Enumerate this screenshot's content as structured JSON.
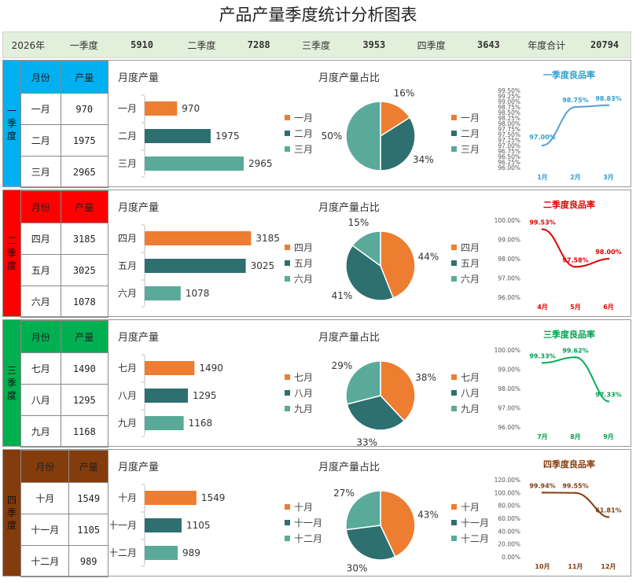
{
  "title": "产品产量季度统计分析图表",
  "summary": {
    "year": "2026年",
    "q1_label": "一季度",
    "q1_value": "5910",
    "q2_label": "二季度",
    "q2_value": "7288",
    "q3_label": "三季度",
    "q3_value": "3953",
    "q4_label": "四季度",
    "q4_value": "3643",
    "total_label": "年度合计",
    "total_value": "20794"
  },
  "table_headers": {
    "month": "月份",
    "output": "产量"
  },
  "quarters": [
    {
      "tag": [
        "一",
        "季",
        "度"
      ],
      "color": "#00b0f0",
      "header_color": "#00b0f0",
      "months": [
        "一月",
        "二月",
        "三月"
      ],
      "values": [
        "970",
        "1975",
        "2965"
      ]
    },
    {
      "tag": [
        "二",
        "季",
        "度"
      ],
      "color": "#ff0000",
      "header_color": "#ff0000",
      "months": [
        "四月",
        "五月",
        "六月"
      ],
      "values": [
        "3185",
        "3025",
        "1078"
      ]
    },
    {
      "tag": [
        "三",
        "季",
        "度"
      ],
      "color": "#00b050",
      "header_color": "#00b050",
      "months": [
        "七月",
        "八月",
        "九月"
      ],
      "values": [
        "1490",
        "1295",
        "1168"
      ]
    },
    {
      "tag": [
        "四",
        "季",
        "度"
      ],
      "color": "#843c0c",
      "header_color": "#843c0c",
      "months": [
        "十月",
        "十一月",
        "十二月"
      ],
      "values": [
        "1549",
        "1105",
        "989"
      ]
    }
  ],
  "colors": {
    "series": [
      "#ed7d31",
      "#2e6f70",
      "#5aaa9a"
    ],
    "axis": "#bfbfbf"
  },
  "chart_data": [
    {
      "type": "bar",
      "title": "月度产量",
      "categories": [
        "一月",
        "二月",
        "三月"
      ],
      "values": [
        970,
        1975,
        2965
      ]
    },
    {
      "type": "pie",
      "title": "月度产量占比",
      "categories": [
        "一月",
        "二月",
        "三月"
      ],
      "values": [
        16,
        34,
        50
      ],
      "labels": [
        "16%",
        "34%",
        "50%"
      ],
      "legend": [
        "一月",
        "二月",
        "三月"
      ]
    },
    {
      "type": "line",
      "title": "一季度良品率",
      "title_color": "#2e9fd0",
      "line_color": "#5a9fd4",
      "x": [
        "1月",
        "2月",
        "3月"
      ],
      "y": [
        97.0,
        98.75,
        98.83
      ],
      "labels": [
        "97.00%",
        "98.75%",
        "98.83%"
      ],
      "ylim": [
        96.0,
        99.5
      ],
      "yticks": [
        "99.50%",
        "99.25%",
        "99.00%",
        "98.75%",
        "98.50%",
        "98.25%",
        "98.00%",
        "97.75%",
        "97.50%",
        "97.25%",
        "97.00%",
        "96.75%",
        "96.50%",
        "96.25%",
        "96.00%"
      ]
    },
    {
      "type": "bar",
      "title": "月度产量",
      "categories": [
        "四月",
        "五月",
        "六月"
      ],
      "values": [
        3185,
        3025,
        1078
      ]
    },
    {
      "type": "pie",
      "title": "月度产量占比",
      "categories": [
        "四月",
        "五月",
        "六月"
      ],
      "values": [
        44,
        41,
        15
      ],
      "labels": [
        "44%",
        "41%",
        "15%"
      ],
      "legend": [
        "四月",
        "五月",
        "六月"
      ]
    },
    {
      "type": "line",
      "title": "二季度良品率",
      "title_color": "#e00000",
      "line_color": "#e00000",
      "x": [
        "4月",
        "5月",
        "6月"
      ],
      "y": [
        99.53,
        97.58,
        98.0
      ],
      "labels": [
        "99.53%",
        "97.58%",
        "98.00%"
      ],
      "ylim": [
        96.0,
        100.0
      ],
      "yticks": [
        "100.00%",
        "99.00%",
        "98.00%",
        "97.00%",
        "96.00%"
      ]
    },
    {
      "type": "bar",
      "title": "月度产量",
      "categories": [
        "七月",
        "八月",
        "九月"
      ],
      "values": [
        1490,
        1295,
        1168
      ]
    },
    {
      "type": "pie",
      "title": "月度产量占比",
      "categories": [
        "七月",
        "八月",
        "九月"
      ],
      "values": [
        38,
        33,
        29
      ],
      "labels": [
        "38%",
        "33%",
        "29%"
      ],
      "legend": [
        "七月",
        "八月",
        "九月"
      ]
    },
    {
      "type": "line",
      "title": "三季度良品率",
      "title_color": "#00a050",
      "line_color": "#00b050",
      "x": [
        "7月",
        "8月",
        "9月"
      ],
      "y": [
        99.33,
        99.62,
        97.33
      ],
      "labels": [
        "99.33%",
        "99.62%",
        "97.33%"
      ],
      "ylim": [
        96.0,
        100.0
      ],
      "yticks": [
        "100.00%",
        "99.00%",
        "98.00%",
        "97.00%",
        "96.00%"
      ]
    },
    {
      "type": "bar",
      "title": "月度产量",
      "categories": [
        "十月",
        "十一月",
        "十二月"
      ],
      "values": [
        1549,
        1105,
        989
      ]
    },
    {
      "type": "pie",
      "title": "月度产量占比",
      "categories": [
        "十月",
        "十一月",
        "十二月"
      ],
      "values": [
        43,
        30,
        27
      ],
      "labels": [
        "43%",
        "30%",
        "27%"
      ],
      "legend": [
        "十月",
        "十一月",
        "十二月"
      ]
    },
    {
      "type": "line",
      "title": "四季度良品率",
      "title_color": "#843c0c",
      "line_color": "#843c0c",
      "x": [
        "10月",
        "11月",
        "12月"
      ],
      "y": [
        99.94,
        99.55,
        61.81
      ],
      "labels": [
        "99.94%",
        "99.55%",
        "61.81%"
      ],
      "ylim": [
        0,
        120
      ],
      "yticks": [
        "120.00%",
        "100.00%",
        "80.00%",
        "60.00%",
        "40.00%",
        "20.00%",
        "0.00%"
      ]
    }
  ]
}
